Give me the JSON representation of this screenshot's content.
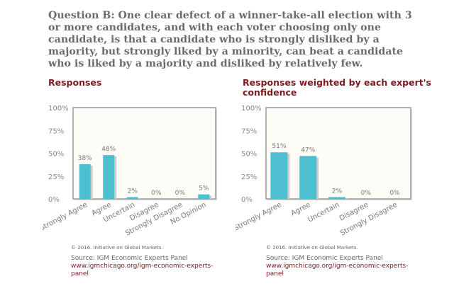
{
  "question": "Question B: One clear defect of a winner-take-all election with 3 or more candidates, and with each voter choosing only one candidate, is that a candidate who is strongly disliked by a majority, but strongly liked by a minority, can beat a candidate who is liked by a majority and disliked by relatively few.",
  "colors": {
    "bar": "#4cbfd1",
    "title": "#7b1c22",
    "plot_bg": "#fdfcf6"
  },
  "chart_data": [
    {
      "type": "bar",
      "title": "Responses",
      "categories": [
        "Strongly Agree",
        "Agree",
        "Uncertain",
        "Disagree",
        "Strongly Disagree",
        "No Opinion"
      ],
      "values": [
        38,
        48,
        2,
        0,
        0,
        5
      ],
      "data_labels": [
        "38%",
        "48%",
        "2%",
        "0%",
        "0%",
        "5%"
      ],
      "yticks": [
        "0%",
        "25%",
        "50%",
        "75%",
        "100%"
      ],
      "ylim": [
        0,
        100
      ]
    },
    {
      "type": "bar",
      "title": "Responses weighted by each expert's confidence",
      "categories": [
        "Strongly Agree",
        "Agree",
        "Uncertain",
        "Disagree",
        "Strongly Disagree"
      ],
      "values": [
        51,
        47,
        2,
        0,
        0
      ],
      "data_labels": [
        "51%",
        "47%",
        "2%",
        "0%",
        "0%"
      ],
      "yticks": [
        "0%",
        "25%",
        "50%",
        "75%",
        "100%"
      ],
      "ylim": [
        0,
        100
      ]
    }
  ],
  "footer": {
    "copyright": "© 2016. Initiative on Global Markets.",
    "source": "Source: IGM Economic Experts Panel",
    "url": "www.igmchicago.org/igm-economic-experts-panel"
  }
}
